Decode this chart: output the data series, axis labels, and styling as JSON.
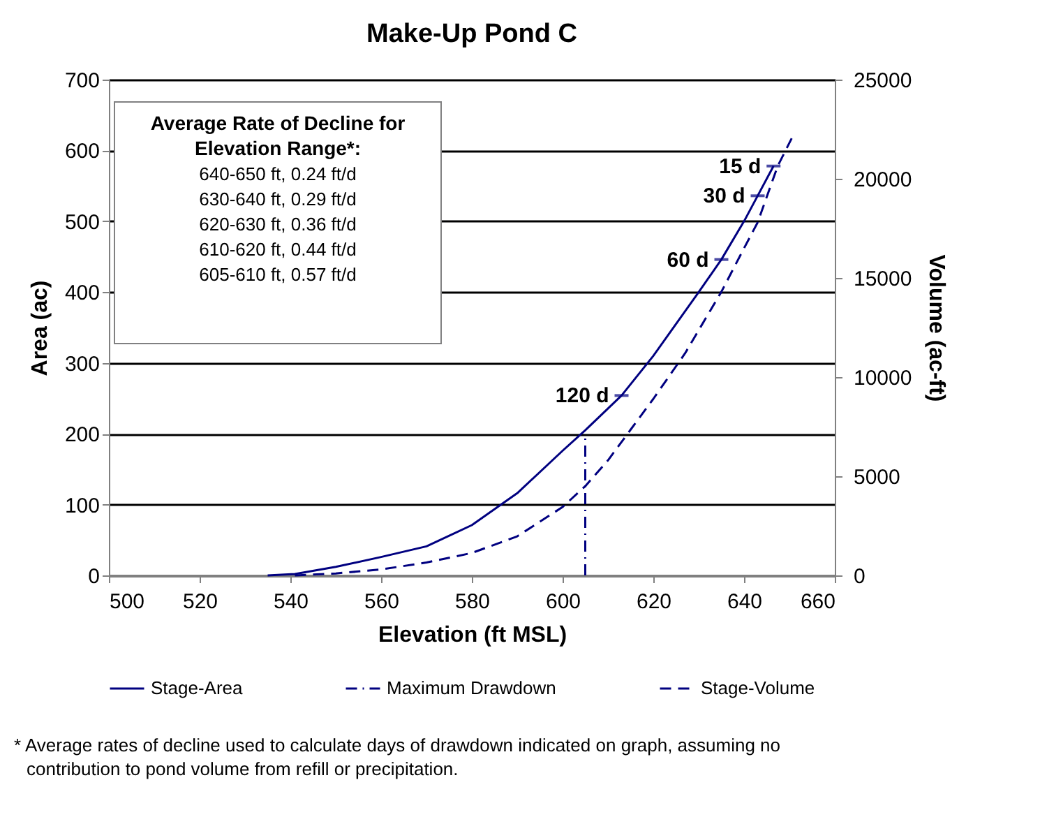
{
  "chart_data": {
    "type": "line",
    "title": "Make-Up Pond C",
    "xlabel": "Elevation (ft MSL)",
    "ylabel": "Area (ac)",
    "y2label": "Volume (ac-ft)",
    "xlim": [
      500,
      660
    ],
    "xticks": [
      500,
      520,
      540,
      560,
      580,
      600,
      620,
      640,
      660
    ],
    "ylim": [
      0,
      700
    ],
    "yticks": [
      0,
      100,
      200,
      300,
      400,
      500,
      600,
      700
    ],
    "y2lim": [
      0,
      25000
    ],
    "y2ticks": [
      0,
      5000,
      10000,
      15000,
      20000,
      25000
    ],
    "grid": "y",
    "legend": "bottom",
    "marker": "none",
    "series": [
      {
        "name": "Stage-Area",
        "color": "#000080",
        "line_style": "solid",
        "x": [
          535,
          541,
          550,
          560,
          570,
          580,
          590,
          600,
          605,
          613,
          620,
          630,
          635,
          640,
          643,
          646.5
        ],
        "values": [
          0,
          2,
          12,
          26,
          41,
          71,
          116,
          176,
          205,
          254,
          310,
          400,
          446,
          500,
          536,
          578
        ]
      },
      {
        "name": "Maximum Drawdown",
        "color": "#000080",
        "line_style": "dashdot",
        "x": [
          605,
          605
        ],
        "values": [
          0,
          200
        ]
      },
      {
        "name": "Stage-Volume",
        "color": "#000080",
        "line_style": "dashed",
        "axis": "y2",
        "x": [
          541,
          550,
          560,
          570,
          580,
          590,
          600,
          605,
          610,
          620,
          627,
          635,
          640,
          643,
          647.4,
          650.5
        ],
        "values": [
          0,
          100,
          300,
          650,
          1130,
          1970,
          3450,
          4500,
          5800,
          8900,
          11200,
          14300,
          16500,
          17800,
          20630,
          22040
        ]
      }
    ],
    "annotations": [
      "Average Rate of Decline for Elevation Range*:",
      "640-650 ft, 0.24 ft/d",
      "630-640 ft, 0.29 ft/d",
      "620-630 ft, 0.36 ft/d",
      "610-620 ft, 0.44 ft/d",
      "605-610 ft, 0.57 ft/d",
      "* Average rates of decline used to calculate days of drawdown indicated on graph, assuming no contribution to pond volume from refill or precipitation.",
      {
        "text": "15 d",
        "x": 646.5,
        "y": 578
      },
      {
        "text": "30 d",
        "x": 643,
        "y": 536
      },
      {
        "text": "60 d",
        "x": 635,
        "y": 446
      },
      {
        "text": "120 d",
        "x": 613,
        "y": 254
      }
    ]
  }
}
